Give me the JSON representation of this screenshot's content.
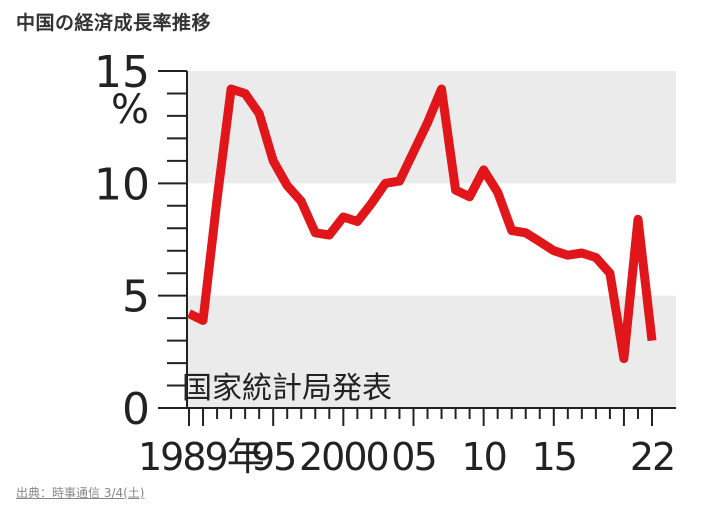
{
  "page": {
    "title": "中国の経済成長率推移",
    "credit": "出典：時事通信 3/4(土)"
  },
  "colors": {
    "line": "#e0161b",
    "band": "#ebebeb",
    "axis": "#222222",
    "text": "#222222"
  },
  "chart_data": {
    "type": "line",
    "title": "中国の経済成長率推移",
    "unit": "%",
    "source_note": "国家統計局発表",
    "ylim": [
      0,
      15
    ],
    "xlim": [
      1989,
      2022
    ],
    "y_ticks": [
      "0",
      "5",
      "10",
      "15"
    ],
    "x_tick_labels": [
      {
        "x": 1989,
        "label": "1989年"
      },
      {
        "x": 1995,
        "label": "95"
      },
      {
        "x": 2000,
        "label": "2000"
      },
      {
        "x": 2005,
        "label": "05"
      },
      {
        "x": 2010,
        "label": "10"
      },
      {
        "x": 2015,
        "label": "15"
      },
      {
        "x": 2022,
        "label": "22"
      }
    ],
    "grid": "alternating horizontal bands",
    "series": [
      {
        "x": [
          1989,
          1990,
          1991,
          1992,
          1993,
          1994,
          1995,
          1996,
          1997,
          1998,
          1999,
          2000,
          2001,
          2002,
          2003,
          2004,
          2005,
          2006,
          2007,
          2008,
          2009,
          2010,
          2011,
          2012,
          2013,
          2014,
          2015,
          2016,
          2017,
          2018,
          2019,
          2020,
          2021,
          2022
        ],
        "values": [
          4.2,
          3.9,
          9.3,
          14.2,
          14.0,
          13.1,
          11.0,
          9.9,
          9.2,
          7.8,
          7.7,
          8.5,
          8.3,
          9.1,
          10.0,
          10.1,
          11.4,
          12.7,
          14.2,
          9.7,
          9.4,
          10.6,
          9.6,
          7.9,
          7.8,
          7.4,
          7.0,
          6.8,
          6.9,
          6.7,
          6.0,
          2.2,
          8.4,
          3.0
        ]
      }
    ]
  }
}
